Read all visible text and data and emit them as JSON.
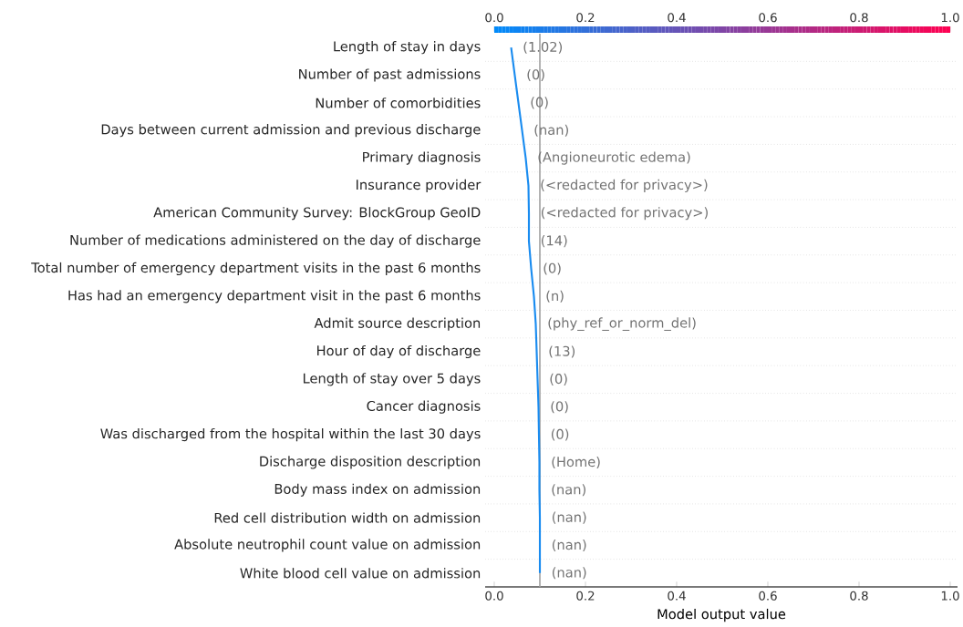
{
  "chart_data": {
    "type": "line",
    "orientation": "horizontal",
    "categories": [
      "Length of stay in days",
      "Number of past admissions",
      "Number of comorbidities",
      "Days between current admission and previous discharge",
      "Primary diagnosis",
      "Insurance provider",
      "American Community Survey: BlockGroup GeoID",
      "Number of medications administered on the day of discharge",
      "Total number of emergency department visits in the past 6 months",
      "Has had an emergency department visit in the past 6 months",
      "Admit source description",
      "Hour of day of discharge",
      "Length of stay over 5 days",
      "Cancer diagnosis",
      "Was discharged from the hospital within the last 30 days",
      "Discharge disposition description",
      "Body mass index on admission",
      "Red cell distribution width on admission",
      "Absolute neutrophil count value on admission",
      "White blood cell value on admission"
    ],
    "values": [
      0.037,
      0.045,
      0.053,
      0.061,
      0.069,
      0.075,
      0.076,
      0.076,
      0.081,
      0.087,
      0.091,
      0.093,
      0.095,
      0.097,
      0.098,
      0.099,
      0.099,
      0.1,
      0.1,
      0.1
    ],
    "annotations": [
      "(1.02)",
      "(0)",
      "(0)",
      "(nan)",
      "(Angioneurotic edema)",
      "(<redacted for privacy>)",
      "(<redacted for privacy>)",
      "(14)",
      "(0)",
      "(n)",
      "(phy_ref_or_norm_del)",
      "(13)",
      "(0)",
      "(0)",
      "(0)",
      "(Home)",
      "(nan)",
      "(nan)",
      "(nan)",
      "(nan)"
    ],
    "color": "#1a8cf0",
    "xlim": [
      -0.02,
      1.016
    ],
    "xticks": [
      {
        "value": 0,
        "label": "0.0"
      },
      0.2,
      0.4,
      0.6,
      0.8,
      {
        "value": 1,
        "label": "1.0"
      }
    ],
    "xlabel": "Model output value",
    "ref_lines": [
      {
        "axis": "x",
        "value": 0.1,
        "color": "#a0a0a0"
      }
    ],
    "grid": "y",
    "clim": [
      0,
      1
    ],
    "cticks": [
      {
        "value": 0,
        "label": "0.0"
      },
      0.2,
      0.4,
      0.6,
      0.8,
      {
        "value": 1,
        "label": "1.0"
      }
    ]
  }
}
